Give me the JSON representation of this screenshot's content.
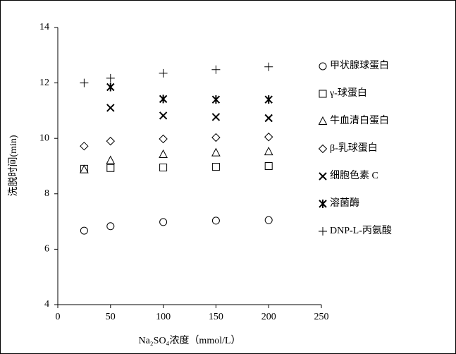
{
  "chart_data": {
    "type": "scatter",
    "xlabel": "Na₂SO₄浓度（mmol/L）",
    "ylabel": "洗脱时间(min)",
    "xlim": [
      0,
      250
    ],
    "xticks": [
      0,
      50,
      100,
      150,
      200,
      250
    ],
    "ylim": [
      4,
      14
    ],
    "yticks": [
      4,
      6,
      8,
      10,
      12,
      14
    ],
    "grid": false,
    "legend": "right",
    "series": [
      {
        "name": "甲状腺球蛋白",
        "color": "#000000",
        "marker": "circle",
        "x": [
          25,
          50,
          100,
          150,
          200
        ],
        "values": [
          6.67,
          6.83,
          6.98,
          7.03,
          7.05
        ]
      },
      {
        "name": "γ-球蛋白",
        "color": "#000000",
        "marker": "square",
        "x": [
          25,
          50,
          100,
          150,
          200
        ],
        "values": [
          8.9,
          8.93,
          8.95,
          8.97,
          9.0
        ]
      },
      {
        "name": "牛血清白蛋白",
        "color": "#000000",
        "marker": "triangle",
        "x": [
          25,
          50,
          100,
          150,
          200
        ],
        "values": [
          8.87,
          9.2,
          9.42,
          9.48,
          9.52
        ]
      },
      {
        "name": "β-乳球蛋白",
        "color": "#000000",
        "marker": "diamond",
        "x": [
          25,
          50,
          100,
          150,
          200
        ],
        "values": [
          9.72,
          9.9,
          9.98,
          10.03,
          10.05
        ]
      },
      {
        "name": "细胞色素 C",
        "color": "#000000",
        "marker": "x",
        "x": [
          50,
          100,
          150,
          200
        ],
        "values": [
          11.1,
          10.82,
          10.77,
          10.73
        ]
      },
      {
        "name": "溶菌酶",
        "color": "#000000",
        "marker": "asterisk",
        "x": [
          50,
          100,
          150,
          200
        ],
        "values": [
          11.85,
          11.42,
          11.4,
          11.4
        ]
      },
      {
        "name": "DNP-L-丙氨酸",
        "color": "#000000",
        "marker": "plus",
        "x": [
          25,
          50,
          100,
          150,
          200
        ],
        "values": [
          12.0,
          12.17,
          12.35,
          12.48,
          12.58
        ]
      }
    ]
  }
}
